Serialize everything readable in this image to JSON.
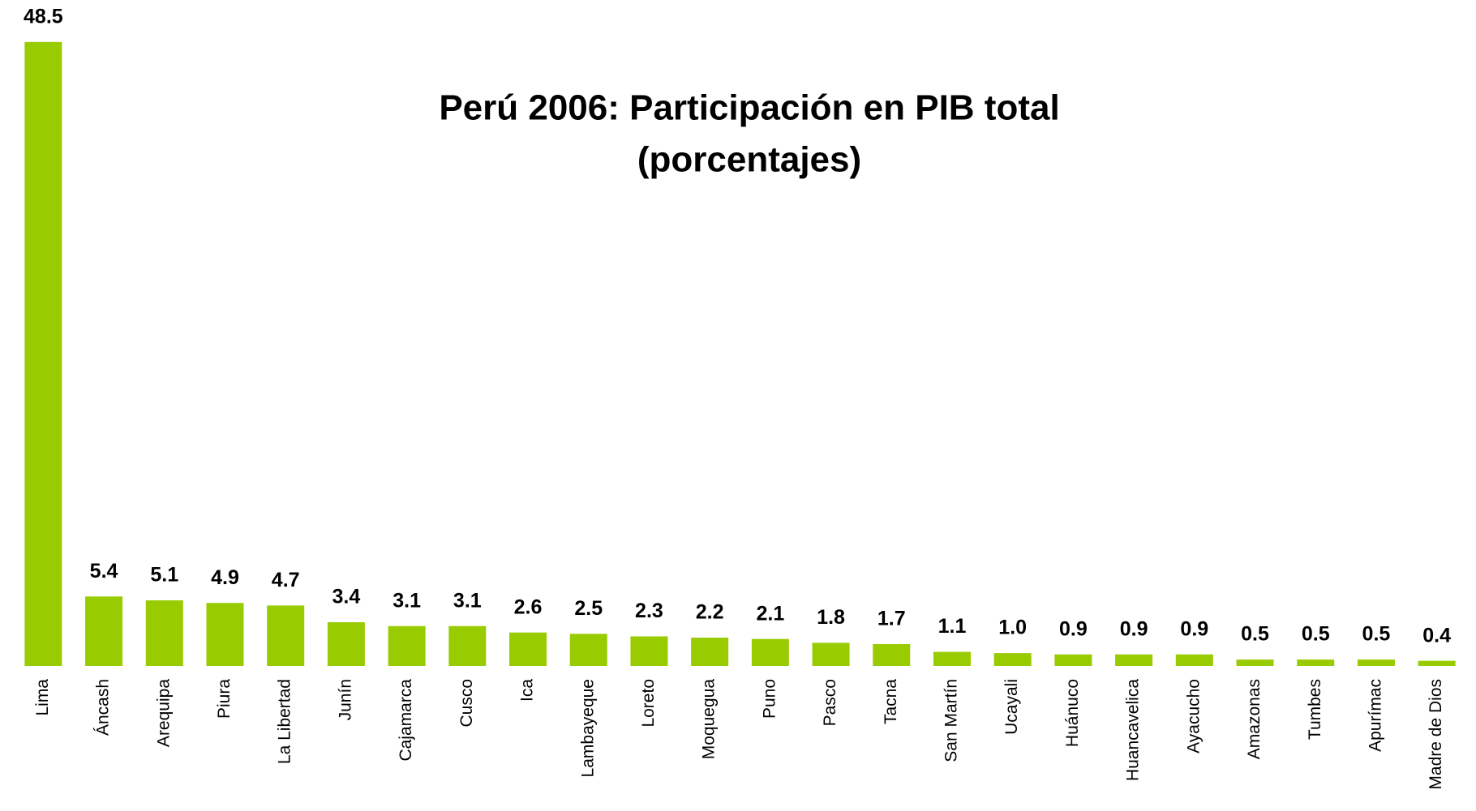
{
  "chart_data": {
    "type": "bar",
    "title": "Perú 2006: Participación en PIB total",
    "subtitle": "(porcentajes)",
    "categories": [
      "Lima",
      "Áncash",
      "Arequipa",
      "Piura",
      "La Libertad",
      "Junín",
      "Cajamarca",
      "Cusco",
      "Ica",
      "Lambayeque",
      "Loreto",
      "Moquegua",
      "Puno",
      "Pasco",
      "Tacna",
      "San Martín",
      "Ucayali",
      "Huánuco",
      "Huancavelica",
      "Ayacucho",
      "Amazonas",
      "Tumbes",
      "Apurímac",
      "Madre de Dios"
    ],
    "values": [
      48.5,
      5.4,
      5.1,
      4.9,
      4.7,
      3.4,
      3.1,
      3.1,
      2.6,
      2.5,
      2.3,
      2.2,
      2.1,
      1.8,
      1.7,
      1.1,
      1.0,
      0.9,
      0.9,
      0.9,
      0.5,
      0.5,
      0.5,
      0.4
    ],
    "value_labels": [
      "48.5",
      "5.4",
      "5.1",
      "4.9",
      "4.7",
      "3.4",
      "3.1",
      "3.1",
      "2.6",
      "2.5",
      "2.3",
      "2.2",
      "2.1",
      "1.8",
      "1.7",
      "1.1",
      "1.0",
      "0.9",
      "0.9",
      "0.9",
      "0.5",
      "0.5",
      "0.5",
      "0.4"
    ],
    "color": "#99cc00",
    "ylim": [
      0,
      50
    ]
  }
}
